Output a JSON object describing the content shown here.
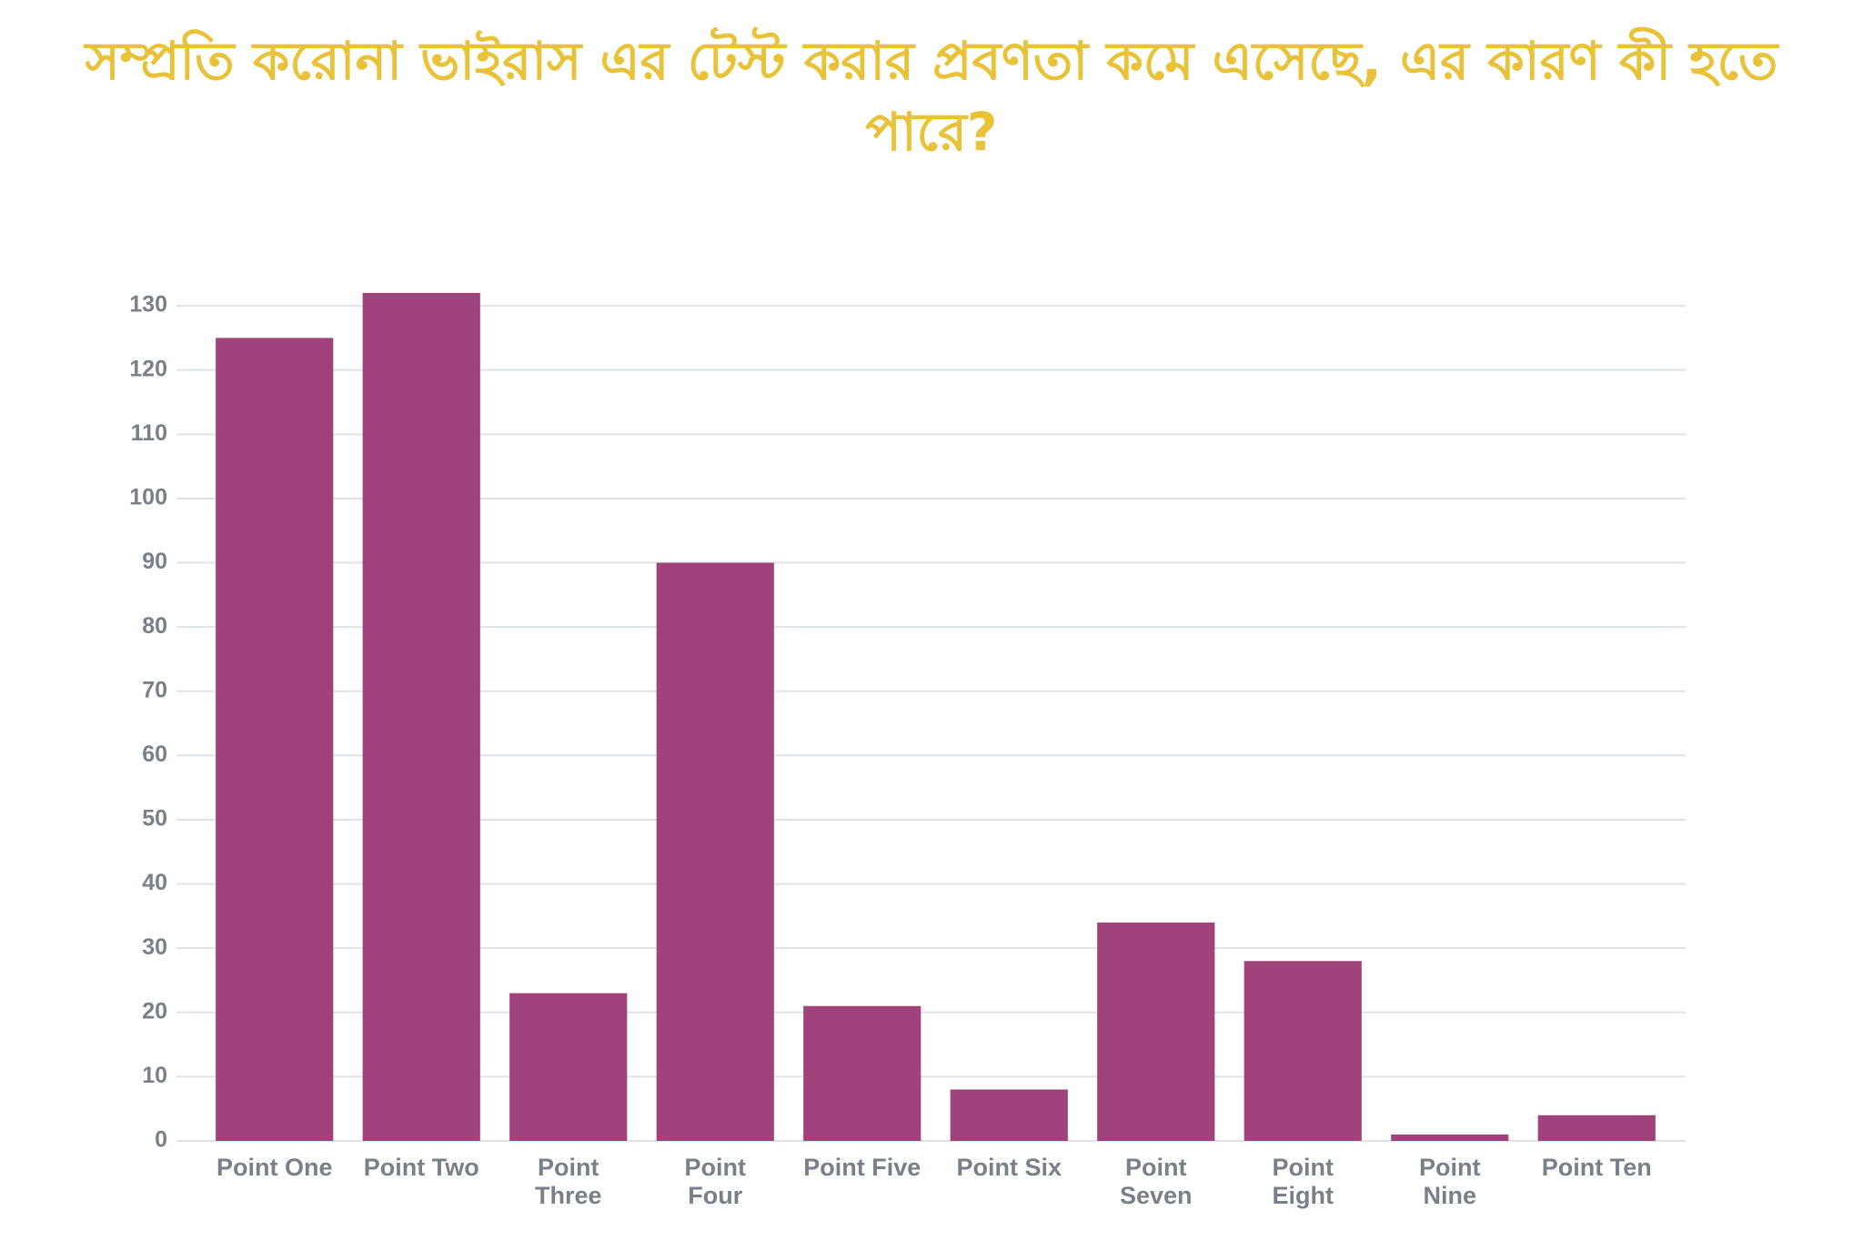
{
  "chart_data": {
    "type": "bar",
    "title": "সম্প্রতি করোনা ভাইরাস এর টেস্ট  করার প্রবণতা কমে এসেছে,  এর কারণ কী হতে পারে?",
    "categories": [
      "Point One",
      "Point Two",
      "Point Three",
      "Point Four",
      "Point Five",
      "Point Six",
      "Point Seven",
      "Point Eight",
      "Point Nine",
      "Point Ten"
    ],
    "values": [
      125,
      132,
      23,
      90,
      21,
      8,
      34,
      28,
      1,
      4
    ],
    "color": "#a0437a",
    "ylim": [
      0,
      132
    ],
    "yticks": [
      0,
      10,
      20,
      30,
      40,
      50,
      60,
      70,
      80,
      90,
      100,
      110,
      120,
      130
    ],
    "grid": true
  }
}
